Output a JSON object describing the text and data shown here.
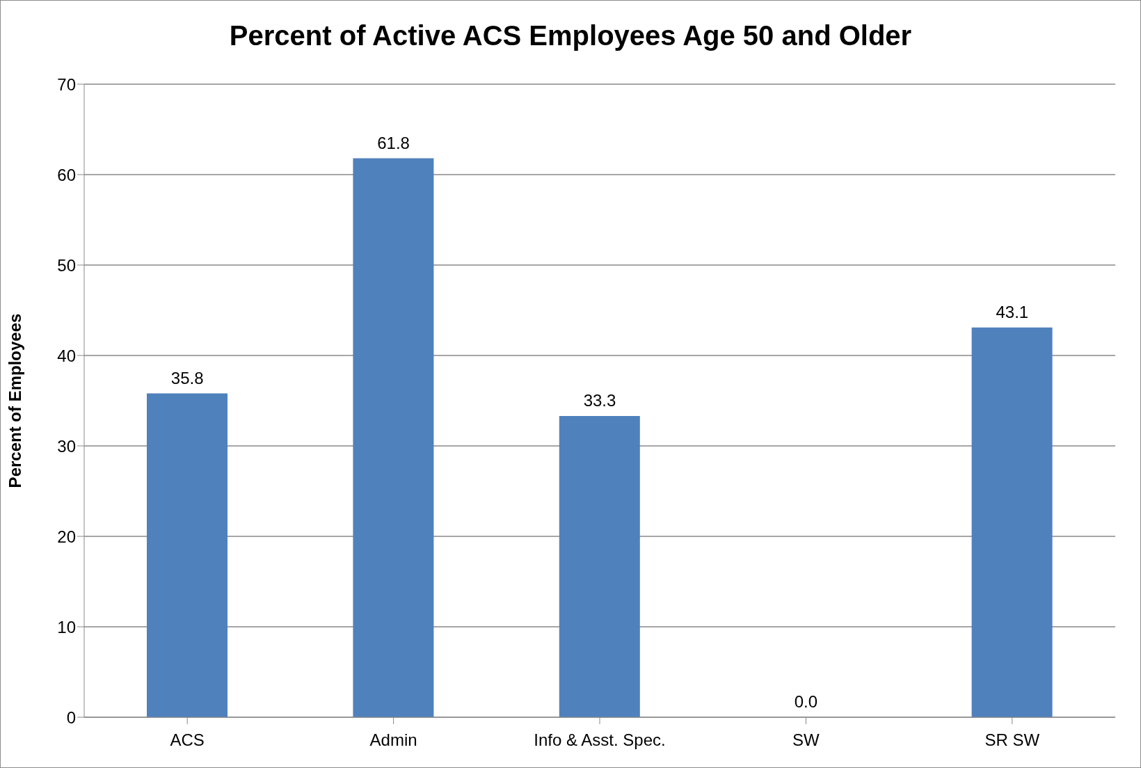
{
  "chart_data": {
    "type": "bar",
    "title": "Percent of Active ACS Employees Age 50 and Older",
    "ylabel": "Percent of Employees",
    "categories": [
      "ACS",
      "Admin",
      "Info & Asst. Spec.",
      "SW",
      "SR SW"
    ],
    "values": [
      35.8,
      61.8,
      33.3,
      0.0,
      43.1
    ],
    "value_labels": [
      "35.8",
      "61.8",
      "33.3",
      "0.0",
      "43.1"
    ],
    "color": "#4f81bd",
    "ylim": [
      0,
      70
    ],
    "yticks": [
      0,
      10,
      20,
      30,
      40,
      50,
      60,
      70
    ],
    "grid": "y"
  }
}
